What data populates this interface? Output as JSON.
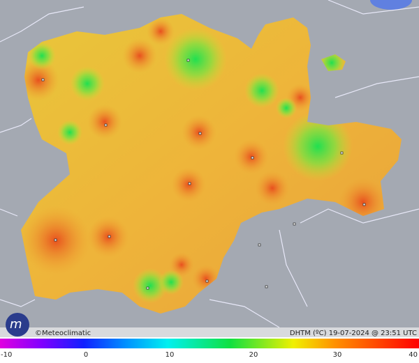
{
  "footer": {
    "credit": "©Meteoclimatic",
    "caption": "DHTM (ºC) 19-07-2024 @ 23:51 UTC"
  },
  "colorbar": {
    "ticks": [
      -10,
      0,
      10,
      20,
      30,
      40
    ]
  }
}
